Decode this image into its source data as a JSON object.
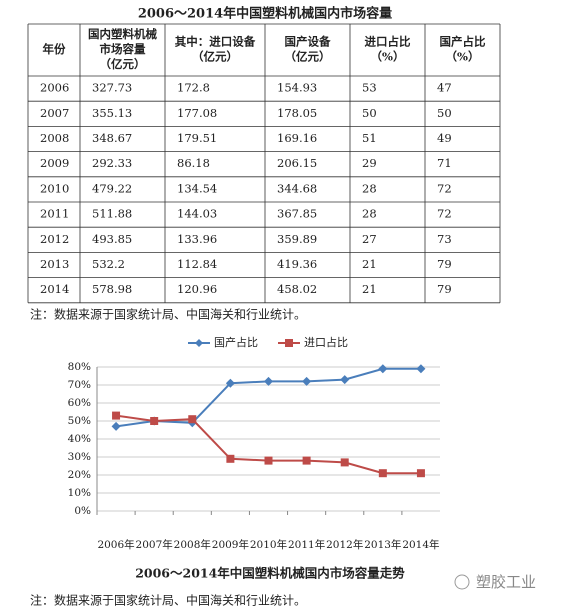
{
  "table_title": "2006～2014年中国塑料机械国内市场容量",
  "table": {
    "header": [
      [
        "年份"
      ],
      [
        "国内塑料机械",
        "市场容量",
        "（亿元）"
      ],
      [
        "其中：进口设备",
        "（亿元）"
      ],
      [
        "国产设备",
        "（亿元）"
      ],
      [
        "进口占比",
        "（%）"
      ],
      [
        "国产占比",
        "（%）"
      ]
    ],
    "rows": [
      [
        "2006",
        "327.73",
        "172.8",
        "154.93",
        "53",
        "47"
      ],
      [
        "2007",
        "355.13",
        "177.08",
        "178.05",
        "50",
        "50"
      ],
      [
        "2008",
        "348.67",
        "179.51",
        "169.16",
        "51",
        "49"
      ],
      [
        "2009",
        "292.33",
        "86.18",
        "206.15",
        "29",
        "71"
      ],
      [
        "2010",
        "479.22",
        "134.54",
        "344.68",
        "28",
        "72"
      ],
      [
        "2011",
        "511.88",
        "144.03",
        "367.85",
        "28",
        "72"
      ],
      [
        "2012",
        "493.85",
        "133.96",
        "359.89",
        "27",
        "73"
      ],
      [
        "2013",
        "532.2",
        "112.84",
        "419.36",
        "21",
        "79"
      ],
      [
        "2014",
        "578.98",
        "120.96",
        "458.02",
        "21",
        "79"
      ]
    ]
  },
  "table_note": "注：数据来源于国家统计局、中国海关和行业统计。",
  "chart_data": {
    "type": "line",
    "categories": [
      "2006年",
      "2007年",
      "2008年",
      "2009年",
      "2010年",
      "2011年",
      "2012年",
      "2013年",
      "2014年"
    ],
    "series": [
      {
        "name": "国产占比",
        "color": "#4a7ebb",
        "marker": "diamond",
        "values": [
          47,
          50,
          49,
          71,
          72,
          72,
          73,
          79,
          79
        ]
      },
      {
        "name": "进口占比",
        "color": "#be4b48",
        "marker": "square",
        "values": [
          53,
          50,
          51,
          29,
          28,
          28,
          27,
          21,
          21
        ]
      }
    ],
    "ylim": [
      0,
      80
    ],
    "yticks": [
      {
        "value": 0,
        "label": "0%"
      },
      {
        "value": 10,
        "label": "10%"
      },
      {
        "value": 20,
        "label": "20%"
      },
      {
        "value": 30,
        "label": "30%"
      },
      {
        "value": 40,
        "label": "40%"
      },
      {
        "value": 50,
        "label": "50%"
      },
      {
        "value": 60,
        "label": "60%"
      },
      {
        "value": 70,
        "label": "70%"
      },
      {
        "value": 80,
        "label": "80%"
      }
    ],
    "grid": true,
    "legend": "top"
  },
  "chart_caption": "2006～2014年中国塑料机械国内市场容量走势",
  "chart_note": "注：数据来源于国家统计局、中国海关和行业统计。",
  "watermark": "塑胶工业"
}
